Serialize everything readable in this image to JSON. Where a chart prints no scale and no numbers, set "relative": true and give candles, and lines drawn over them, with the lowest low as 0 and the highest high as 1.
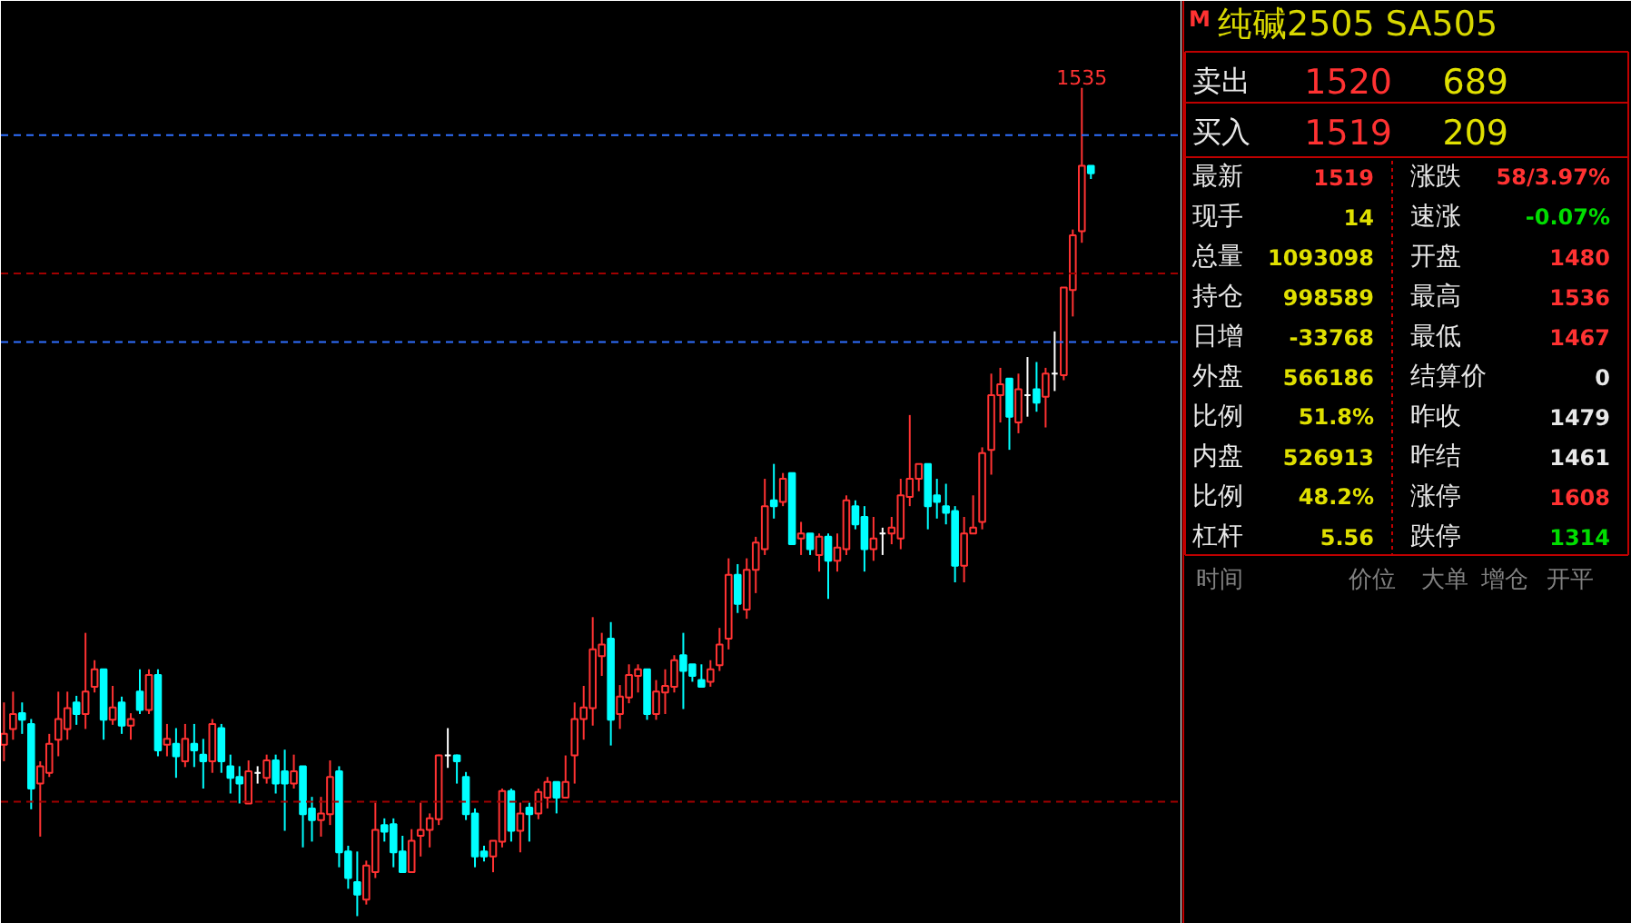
{
  "chart_data": [
    {
      "type": "candlestick",
      "relative": true,
      "categories": [
        null,
        null,
        null,
        null,
        null,
        null,
        null,
        null,
        null,
        null,
        null,
        null,
        null,
        null,
        null,
        null,
        null,
        null,
        null,
        null,
        null,
        null,
        null,
        null,
        null,
        null,
        null,
        null,
        null,
        null,
        null,
        null,
        null,
        null,
        null,
        null,
        null,
        null,
        null,
        null,
        null,
        null,
        null,
        null,
        null,
        null,
        null,
        null,
        null,
        null,
        null,
        null,
        null,
        null,
        null,
        null,
        null,
        null,
        null,
        null,
        null,
        null,
        null,
        null,
        null,
        null,
        null,
        null,
        null,
        null,
        null,
        null,
        null,
        null,
        null,
        null,
        null,
        null,
        null,
        null,
        null,
        null,
        null,
        null,
        null,
        null,
        null,
        null,
        null,
        null,
        null,
        null,
        null,
        null,
        null,
        null,
        null,
        null,
        null,
        null,
        null,
        null,
        null,
        null,
        null,
        null,
        null,
        null,
        null,
        null,
        null,
        null,
        null,
        null,
        null,
        null,
        null,
        null,
        null,
        null,
        null
      ],
      "ohlc": [
        [
          0.207,
          0.258,
          0.187,
          0.22
        ],
        [
          0.226,
          0.271,
          0.213,
          0.244
        ],
        [
          0.245,
          0.258,
          0.22,
          0.237
        ],
        [
          0.232,
          0.238,
          0.129,
          0.154
        ],
        [
          0.16,
          0.187,
          0.096,
          0.181
        ],
        [
          0.173,
          0.22,
          0.168,
          0.208
        ],
        [
          0.213,
          0.271,
          0.193,
          0.238
        ],
        [
          0.226,
          0.271,
          0.213,
          0.251
        ],
        [
          0.258,
          0.266,
          0.231,
          0.244
        ],
        [
          0.244,
          0.342,
          0.226,
          0.271
        ],
        [
          0.277,
          0.309,
          0.27,
          0.298
        ],
        [
          0.298,
          0.298,
          0.213,
          0.237
        ],
        [
          0.237,
          0.278,
          0.231,
          0.252
        ],
        [
          0.258,
          0.265,
          0.22,
          0.23
        ],
        [
          0.23,
          0.245,
          0.213,
          0.238
        ],
        [
          0.271,
          0.298,
          0.244,
          0.249
        ],
        [
          0.249,
          0.298,
          0.244,
          0.291
        ],
        [
          0.291,
          0.298,
          0.193,
          0.2
        ],
        [
          0.207,
          0.232,
          0.193,
          0.214
        ],
        [
          0.208,
          0.227,
          0.167,
          0.193
        ],
        [
          0.187,
          0.232,
          0.18,
          0.214
        ],
        [
          0.208,
          0.232,
          0.18,
          0.2
        ],
        [
          0.195,
          0.214,
          0.154,
          0.187
        ],
        [
          0.187,
          0.238,
          0.173,
          0.232
        ],
        [
          0.227,
          0.232,
          0.173,
          0.187
        ],
        [
          0.181,
          0.195,
          0.148,
          0.167
        ],
        [
          0.168,
          0.181,
          0.136,
          0.16
        ],
        [
          0.136,
          0.188,
          0.136,
          0.175
        ],
        [
          0.173,
          0.181,
          0.16,
          0.173
        ],
        [
          0.167,
          0.195,
          0.16,
          0.188
        ],
        [
          0.188,
          0.195,
          0.148,
          0.16
        ],
        [
          0.175,
          0.201,
          0.103,
          0.16
        ],
        [
          0.16,
          0.195,
          0.154,
          0.175
        ],
        [
          0.181,
          0.181,
          0.083,
          0.123
        ],
        [
          0.13,
          0.144,
          0.09,
          0.116
        ],
        [
          0.116,
          0.144,
          0.096,
          0.124
        ],
        [
          0.123,
          0.188,
          0.11,
          0.168
        ],
        [
          0.175,
          0.181,
          0.059,
          0.077
        ],
        [
          0.078,
          0.085,
          0.033,
          0.046
        ],
        [
          0.041,
          0.078,
          0.0,
          0.026
        ],
        [
          0.02,
          0.067,
          0.014,
          0.061
        ],
        [
          0.053,
          0.137,
          0.046,
          0.104
        ],
        [
          0.11,
          0.118,
          0.09,
          0.102
        ],
        [
          0.111,
          0.118,
          0.059,
          0.077
        ],
        [
          0.078,
          0.097,
          0.053,
          0.053
        ],
        [
          0.053,
          0.105,
          0.053,
          0.091
        ],
        [
          0.097,
          0.137,
          0.072,
          0.104
        ],
        [
          0.104,
          0.124,
          0.083,
          0.118
        ],
        [
          0.117,
          0.195,
          0.11,
          0.194
        ],
        [
          0.194,
          0.227,
          0.179,
          0.194
        ],
        [
          0.194,
          0.195,
          0.16,
          0.187
        ],
        [
          0.168,
          0.174,
          0.116,
          0.123
        ],
        [
          0.124,
          0.13,
          0.059,
          0.072
        ],
        [
          0.078,
          0.085,
          0.066,
          0.072
        ],
        [
          0.072,
          0.091,
          0.053,
          0.091
        ],
        [
          0.09,
          0.154,
          0.083,
          0.151
        ],
        [
          0.151,
          0.154,
          0.09,
          0.103
        ],
        [
          0.103,
          0.137,
          0.077,
          0.124
        ],
        [
          0.131,
          0.137,
          0.09,
          0.123
        ],
        [
          0.124,
          0.154,
          0.117,
          0.15
        ],
        [
          0.143,
          0.168,
          0.13,
          0.162
        ],
        [
          0.162,
          0.162,
          0.124,
          0.143
        ],
        [
          0.143,
          0.194,
          0.143,
          0.162
        ],
        [
          0.194,
          0.258,
          0.16,
          0.238
        ],
        [
          0.238,
          0.278,
          0.213,
          0.252
        ],
        [
          0.251,
          0.361,
          0.23,
          0.322
        ],
        [
          0.314,
          0.342,
          0.29,
          0.328
        ],
        [
          0.335,
          0.355,
          0.206,
          0.237
        ],
        [
          0.244,
          0.279,
          0.226,
          0.265
        ],
        [
          0.264,
          0.304,
          0.257,
          0.291
        ],
        [
          0.29,
          0.304,
          0.27,
          0.298
        ],
        [
          0.298,
          0.298,
          0.237,
          0.244
        ],
        [
          0.244,
          0.285,
          0.237,
          0.271
        ],
        [
          0.27,
          0.298,
          0.244,
          0.278
        ],
        [
          0.277,
          0.315,
          0.27,
          0.309
        ],
        [
          0.315,
          0.342,
          0.25,
          0.296
        ],
        [
          0.304,
          0.304,
          0.283,
          0.29
        ],
        [
          0.285,
          0.304,
          0.277,
          0.277
        ],
        [
          0.283,
          0.309,
          0.277,
          0.298
        ],
        [
          0.303,
          0.348,
          0.296,
          0.328
        ],
        [
          0.335,
          0.432,
          0.322,
          0.412
        ],
        [
          0.412,
          0.425,
          0.366,
          0.377
        ],
        [
          0.37,
          0.432,
          0.359,
          0.418
        ],
        [
          0.418,
          0.458,
          0.39,
          0.451
        ],
        [
          0.443,
          0.528,
          0.436,
          0.495
        ],
        [
          0.502,
          0.546,
          0.48,
          0.495
        ],
        [
          0.5,
          0.535,
          0.495,
          0.528
        ],
        [
          0.535,
          0.535,
          0.449,
          0.449
        ],
        [
          0.456,
          0.476,
          0.436,
          0.462
        ],
        [
          0.462,
          0.462,
          0.436,
          0.443
        ],
        [
          0.436,
          0.462,
          0.416,
          0.458
        ],
        [
          0.458,
          0.462,
          0.383,
          0.429
        ],
        [
          0.429,
          0.462,
          0.416,
          0.445
        ],
        [
          0.443,
          0.508,
          0.436,
          0.502
        ],
        [
          0.495,
          0.502,
          0.467,
          0.473
        ],
        [
          0.482,
          0.495,
          0.416,
          0.443
        ],
        [
          0.443,
          0.482,
          0.429,
          0.456
        ],
        [
          0.462,
          0.469,
          0.436,
          0.462
        ],
        [
          0.462,
          0.482,
          0.449,
          0.469
        ],
        [
          0.456,
          0.528,
          0.443,
          0.508
        ],
        [
          0.506,
          0.605,
          0.495,
          0.528
        ],
        [
          0.528,
          0.546,
          0.513,
          0.546
        ],
        [
          0.546,
          0.546,
          0.467,
          0.495
        ],
        [
          0.508,
          0.528,
          0.48,
          0.5
        ],
        [
          0.495,
          0.522,
          0.473,
          0.487
        ],
        [
          0.489,
          0.495,
          0.403,
          0.423
        ],
        [
          0.423,
          0.482,
          0.403,
          0.462
        ],
        [
          0.462,
          0.508,
          0.462,
          0.469
        ],
        [
          0.476,
          0.566,
          0.467,
          0.559
        ],
        [
          0.563,
          0.655,
          0.533,
          0.629
        ],
        [
          0.629,
          0.662,
          0.596,
          0.642
        ],
        [
          0.649,
          0.649,
          0.563,
          0.603
        ],
        [
          0.596,
          0.655,
          0.583,
          0.636
        ],
        [
          0.629,
          0.675,
          0.603,
          0.629
        ],
        [
          0.636,
          0.669,
          0.609,
          0.62
        ],
        [
          0.627,
          0.662,
          0.59,
          0.655
        ],
        [
          0.655,
          0.706,
          0.634,
          0.655
        ],
        [
          0.653,
          0.759,
          0.647,
          0.759
        ],
        [
          0.756,
          0.829,
          0.724,
          0.822
        ],
        [
          0.827,
          1.0,
          0.813,
          0.906
        ],
        [
          0.906,
          0.906,
          0.89,
          0.897
        ]
      ],
      "colors": [
        "#ff3232",
        "#ff3232",
        "#00ffff",
        "#00ffff",
        "#ff3232",
        "#ff3232",
        "#ff3232",
        "#ff3232",
        "#00ffff",
        "#ff3232",
        "#ff3232",
        "#00ffff",
        "#ff3232",
        "#00ffff",
        "#ff3232",
        "#00ffff",
        "#ff3232",
        "#00ffff",
        "#ff3232",
        "#00ffff",
        "#ff3232",
        "#00ffff",
        "#00ffff",
        "#ff3232",
        "#00ffff",
        "#00ffff",
        "#00ffff",
        "#ff3232",
        "#ffffff",
        "#ff3232",
        "#00ffff",
        "#00ffff",
        "#ff3232",
        "#00ffff",
        "#00ffff",
        "#ff3232",
        "#ff3232",
        "#00ffff",
        "#00ffff",
        "#00ffff",
        "#ff3232",
        "#ff3232",
        "#00ffff",
        "#00ffff",
        "#00ffff",
        "#ff3232",
        "#ff3232",
        "#ff3232",
        "#ff3232",
        "#ffffff",
        "#00ffff",
        "#00ffff",
        "#00ffff",
        "#00ffff",
        "#ff3232",
        "#ff3232",
        "#00ffff",
        "#ff3232",
        "#00ffff",
        "#ff3232",
        "#ff3232",
        "#00ffff",
        "#ff3232",
        "#ff3232",
        "#ff3232",
        "#ff3232",
        "#ff3232",
        "#00ffff",
        "#ff3232",
        "#ff3232",
        "#ff3232",
        "#00ffff",
        "#ff3232",
        "#ff3232",
        "#ff3232",
        "#00ffff",
        "#00ffff",
        "#00ffff",
        "#ff3232",
        "#ff3232",
        "#ff3232",
        "#00ffff",
        "#ff3232",
        "#ff3232",
        "#ff3232",
        "#00ffff",
        "#ff3232",
        "#00ffff",
        "#ff3232",
        "#00ffff",
        "#ff3232",
        "#00ffff",
        "#ff3232",
        "#ff3232",
        "#00ffff",
        "#00ffff",
        "#ff3232",
        "#ffffff",
        "#ff3232",
        "#ff3232",
        "#ff3232",
        "#ff3232",
        "#00ffff",
        "#00ffff",
        "#00ffff",
        "#00ffff",
        "#ff3232",
        "#ff3232",
        "#ff3232",
        "#ff3232",
        "#ff3232",
        "#00ffff",
        "#ff3232",
        "#ffffff",
        "#00ffff",
        "#ff3232",
        "#ffffff",
        "#ff3232",
        "#ff3232",
        "#ff3232",
        "#00ffff"
      ],
      "ref_lines": [
        {
          "axis": "y",
          "value": 0.943,
          "color": "#2f6fff",
          "line_style": "dashed"
        },
        {
          "axis": "y",
          "value": 0.776,
          "color": "#a00000",
          "line_style": "dashed"
        },
        {
          "axis": "y",
          "value": 0.693,
          "color": "#2f6fff",
          "line_style": "dashed"
        },
        {
          "axis": "y",
          "value": 0.138,
          "color": "#a00000",
          "line_style": "dashed"
        }
      ],
      "annotations": [
        {
          "text": "1535",
          "y": 1.0
        }
      ],
      "grid": false
    },
    {
      "type": "other",
      "title": "纯碱2505  SA505",
      "annotations": [
        "M",
        "卖出",
        "1520",
        "689",
        "买入",
        "1519",
        "209",
        "最新",
        "1519",
        "涨跌",
        "58/3.97%",
        "现手",
        "14",
        "速涨",
        "-0.07%",
        "总量",
        "1093098",
        "开盘",
        "1480",
        "持仓",
        "998589",
        "最高",
        "1536",
        "日增",
        "-33768",
        "最低",
        "1467",
        "外盘",
        "566186",
        "结算价",
        "0",
        "比例",
        "51.8%",
        "昨收",
        "1479",
        "内盘",
        "526913",
        "昨结",
        "1461",
        "比例",
        "48.2%",
        "涨停",
        "1608",
        "杠杆",
        "5.56",
        "跌停",
        "1314",
        "时间",
        "价位",
        "大单",
        "增仓",
        "开平"
      ]
    }
  ]
}
